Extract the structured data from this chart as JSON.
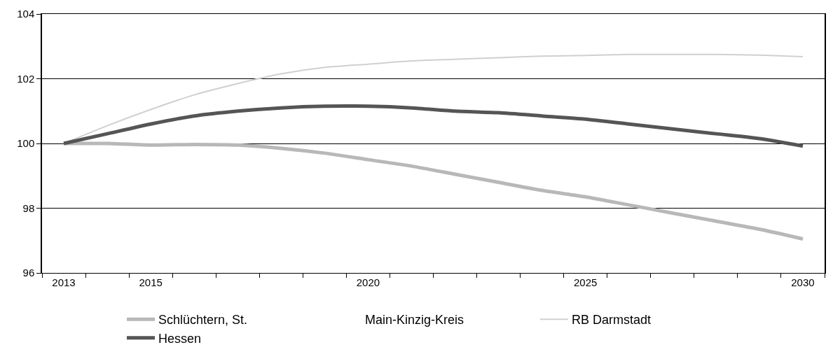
{
  "chart_data": {
    "type": "line",
    "categories": [
      "2013",
      null,
      "2015",
      null,
      null,
      null,
      null,
      "2020",
      null,
      null,
      null,
      null,
      "2025",
      null,
      null,
      null,
      null,
      "2030"
    ],
    "series": [
      {
        "name": "Schlüchtern, St.",
        "color": "#b8b8b8",
        "values": [
          100,
          100.0,
          99.95,
          99.97,
          99.95,
          99.85,
          99.7,
          99.5,
          99.3,
          99.05,
          98.8,
          98.55,
          98.35,
          98.1,
          97.85,
          97.6,
          97.35,
          97.05
        ]
      },
      {
        "name": "Main-Kinzig-Kreis",
        "values": [
          null,
          null,
          null,
          null,
          null,
          null,
          null,
          null,
          null,
          null,
          null,
          null,
          null,
          null,
          null,
          null,
          null,
          null
        ]
      },
      {
        "name": "RB Darmstadt",
        "color": "#d0d0d0",
        "values": [
          100,
          100.55,
          101.05,
          101.5,
          101.85,
          102.15,
          102.35,
          102.45,
          102.55,
          102.6,
          102.65,
          102.7,
          102.72,
          102.75,
          102.75,
          102.75,
          102.73,
          102.68
        ]
      },
      {
        "name": "Hessen",
        "color": "#555555",
        "values": [
          100,
          100.3,
          100.6,
          100.85,
          101.0,
          101.1,
          101.15,
          101.15,
          101.1,
          101.0,
          100.95,
          100.85,
          100.75,
          100.6,
          100.45,
          100.3,
          100.15,
          99.92
        ]
      }
    ],
    "ylim": [
      96,
      104
    ],
    "yticks": [
      96,
      98,
      100,
      102,
      104
    ],
    "grid": "y",
    "legend": "bottom",
    "line_style": "solid",
    "marker": "none"
  }
}
